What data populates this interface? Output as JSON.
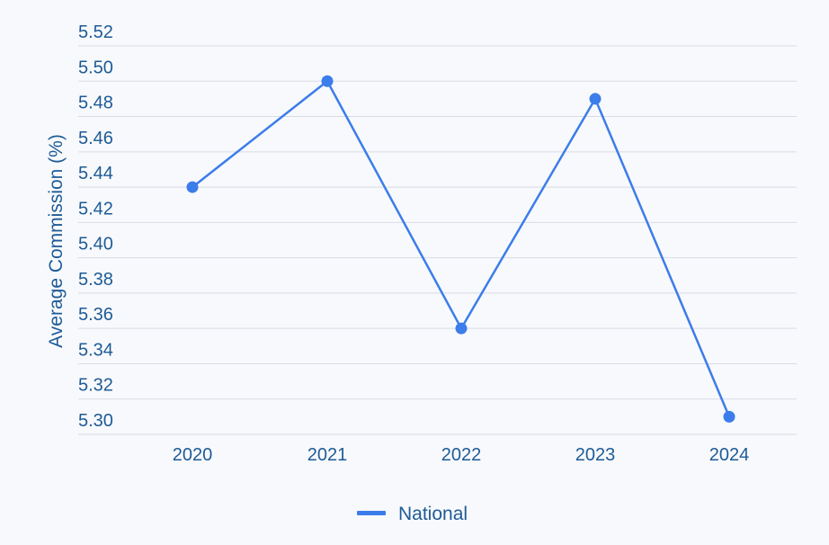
{
  "chart_data": {
    "type": "line",
    "title": "",
    "xlabel": "",
    "ylabel": "Average Commission (%)",
    "categories": [
      "2020",
      "2021",
      "2022",
      "2023",
      "2024"
    ],
    "ylim": [
      5.3,
      5.52
    ],
    "yticks": [
      "5.30",
      "5.32",
      "5.34",
      "5.36",
      "5.38",
      "5.40",
      "5.42",
      "5.44",
      "5.46",
      "5.48",
      "5.50",
      "5.52"
    ],
    "grid": true,
    "legend_position": "bottom-center",
    "series": [
      {
        "name": "National",
        "values": [
          5.44,
          5.5,
          5.36,
          5.49,
          5.31
        ]
      }
    ],
    "colors": {
      "series": "#3b7dea",
      "text": "#1d5b96",
      "grid": "#d8dce6",
      "background": "#f8f9fc"
    }
  }
}
